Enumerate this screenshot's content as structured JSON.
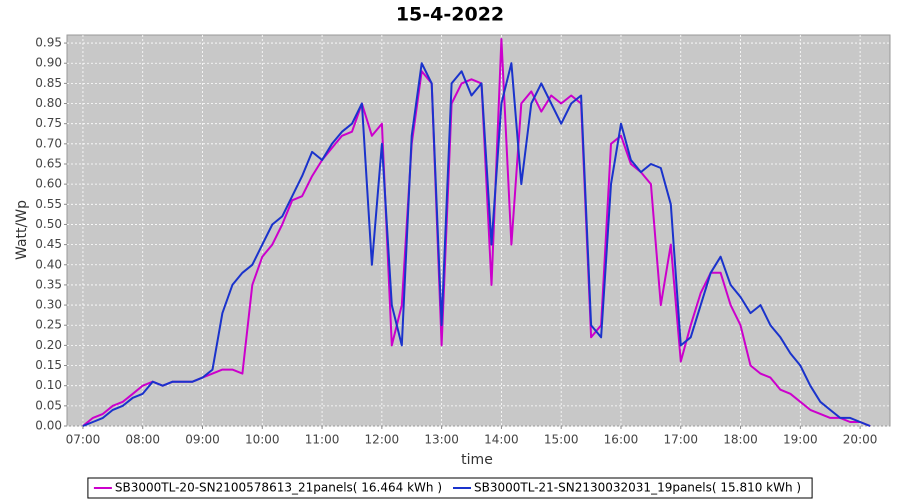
{
  "chart_data": {
    "type": "line",
    "title": "15-4-2022",
    "x_label": "time",
    "y_label": "Watt/Wp",
    "x": [
      "07:00",
      "07:10",
      "07:20",
      "07:30",
      "07:40",
      "07:50",
      "08:00",
      "08:10",
      "08:20",
      "08:30",
      "08:40",
      "08:50",
      "09:00",
      "09:10",
      "09:20",
      "09:30",
      "09:40",
      "09:50",
      "10:00",
      "10:10",
      "10:20",
      "10:30",
      "10:40",
      "10:50",
      "11:00",
      "11:10",
      "11:20",
      "11:30",
      "11:40",
      "11:50",
      "12:00",
      "12:10",
      "12:20",
      "12:30",
      "12:40",
      "12:50",
      "13:00",
      "13:10",
      "13:20",
      "13:30",
      "13:40",
      "13:50",
      "14:00",
      "14:10",
      "14:20",
      "14:30",
      "14:40",
      "14:50",
      "15:00",
      "15:10",
      "15:20",
      "15:30",
      "15:40",
      "15:50",
      "16:00",
      "16:10",
      "16:20",
      "16:30",
      "16:40",
      "16:50",
      "17:00",
      "17:10",
      "17:20",
      "17:30",
      "17:40",
      "17:50",
      "18:00",
      "18:10",
      "18:20",
      "18:30",
      "18:40",
      "18:50",
      "19:00",
      "19:10",
      "19:20",
      "19:30",
      "19:40",
      "19:50",
      "20:00",
      "20:10"
    ],
    "series": [
      {
        "name": "SB3000TL-20-SN2100578613_21panels( 16.464 kWh )",
        "color": "#cc00cc",
        "values": [
          0.0,
          0.02,
          0.03,
          0.05,
          0.06,
          0.08,
          0.1,
          0.11,
          0.1,
          0.11,
          0.11,
          0.11,
          0.12,
          0.13,
          0.14,
          0.14,
          0.13,
          0.35,
          0.42,
          0.45,
          0.5,
          0.56,
          0.57,
          0.62,
          0.66,
          0.69,
          0.72,
          0.73,
          0.8,
          0.72,
          0.75,
          0.2,
          0.3,
          0.7,
          0.88,
          0.85,
          0.2,
          0.8,
          0.85,
          0.86,
          0.85,
          0.35,
          0.96,
          0.45,
          0.8,
          0.83,
          0.78,
          0.82,
          0.8,
          0.82,
          0.8,
          0.22,
          0.25,
          0.7,
          0.72,
          0.65,
          0.63,
          0.6,
          0.3,
          0.45,
          0.16,
          0.25,
          0.33,
          0.38,
          0.38,
          0.3,
          0.25,
          0.15,
          0.13,
          0.12,
          0.09,
          0.08,
          0.06,
          0.04,
          0.03,
          0.02,
          0.02,
          0.01,
          0.01,
          0.0
        ]
      },
      {
        "name": "SB3000TL-21-SN2130032031_19panels( 15.810 kWh )",
        "color": "#1a33cc",
        "values": [
          0.0,
          0.01,
          0.02,
          0.04,
          0.05,
          0.07,
          0.08,
          0.11,
          0.1,
          0.11,
          0.11,
          0.11,
          0.12,
          0.14,
          0.28,
          0.35,
          0.38,
          0.4,
          0.45,
          0.5,
          0.52,
          0.57,
          0.62,
          0.68,
          0.66,
          0.7,
          0.73,
          0.75,
          0.8,
          0.4,
          0.7,
          0.3,
          0.2,
          0.72,
          0.9,
          0.85,
          0.25,
          0.85,
          0.88,
          0.82,
          0.85,
          0.45,
          0.8,
          0.9,
          0.6,
          0.8,
          0.85,
          0.8,
          0.75,
          0.8,
          0.82,
          0.25,
          0.22,
          0.6,
          0.75,
          0.66,
          0.63,
          0.65,
          0.64,
          0.55,
          0.2,
          0.22,
          0.3,
          0.38,
          0.42,
          0.35,
          0.32,
          0.28,
          0.3,
          0.25,
          0.22,
          0.18,
          0.15,
          0.1,
          0.06,
          0.04,
          0.02,
          0.02,
          0.01,
          0.0
        ]
      }
    ],
    "xlim": [
      "06:44",
      "20:30"
    ],
    "xticks": [
      "07:00",
      "08:00",
      "09:00",
      "10:00",
      "11:00",
      "12:00",
      "13:00",
      "14:00",
      "15:00",
      "16:00",
      "17:00",
      "18:00",
      "19:00",
      "20:00"
    ],
    "ylim": [
      0,
      0.97
    ],
    "yticks": [
      {
        "value": 0,
        "label": "0.00"
      },
      {
        "value": 0.05,
        "label": "0.05"
      },
      {
        "value": 0.1,
        "label": "0.10"
      },
      {
        "value": 0.15,
        "label": "0.15"
      },
      {
        "value": 0.2,
        "label": "0.20"
      },
      {
        "value": 0.25,
        "label": "0.25"
      },
      {
        "value": 0.3,
        "label": "0.30"
      },
      {
        "value": 0.35,
        "label": "0.35"
      },
      {
        "value": 0.4,
        "label": "0.40"
      },
      {
        "value": 0.45,
        "label": "0.45"
      },
      {
        "value": 0.5,
        "label": "0.50"
      },
      {
        "value": 0.55,
        "label": "0.55"
      },
      {
        "value": 0.6,
        "label": "0.60"
      },
      {
        "value": 0.65,
        "label": "0.65"
      },
      {
        "value": 0.7,
        "label": "0.70"
      },
      {
        "value": 0.75,
        "label": "0.75"
      },
      {
        "value": 0.8,
        "label": "0.80"
      },
      {
        "value": 0.85,
        "label": "0.85"
      },
      {
        "value": 0.9,
        "label": "0.90"
      },
      {
        "value": 0.95,
        "label": "0.95"
      }
    ],
    "grid": true,
    "legend": "bottom"
  }
}
